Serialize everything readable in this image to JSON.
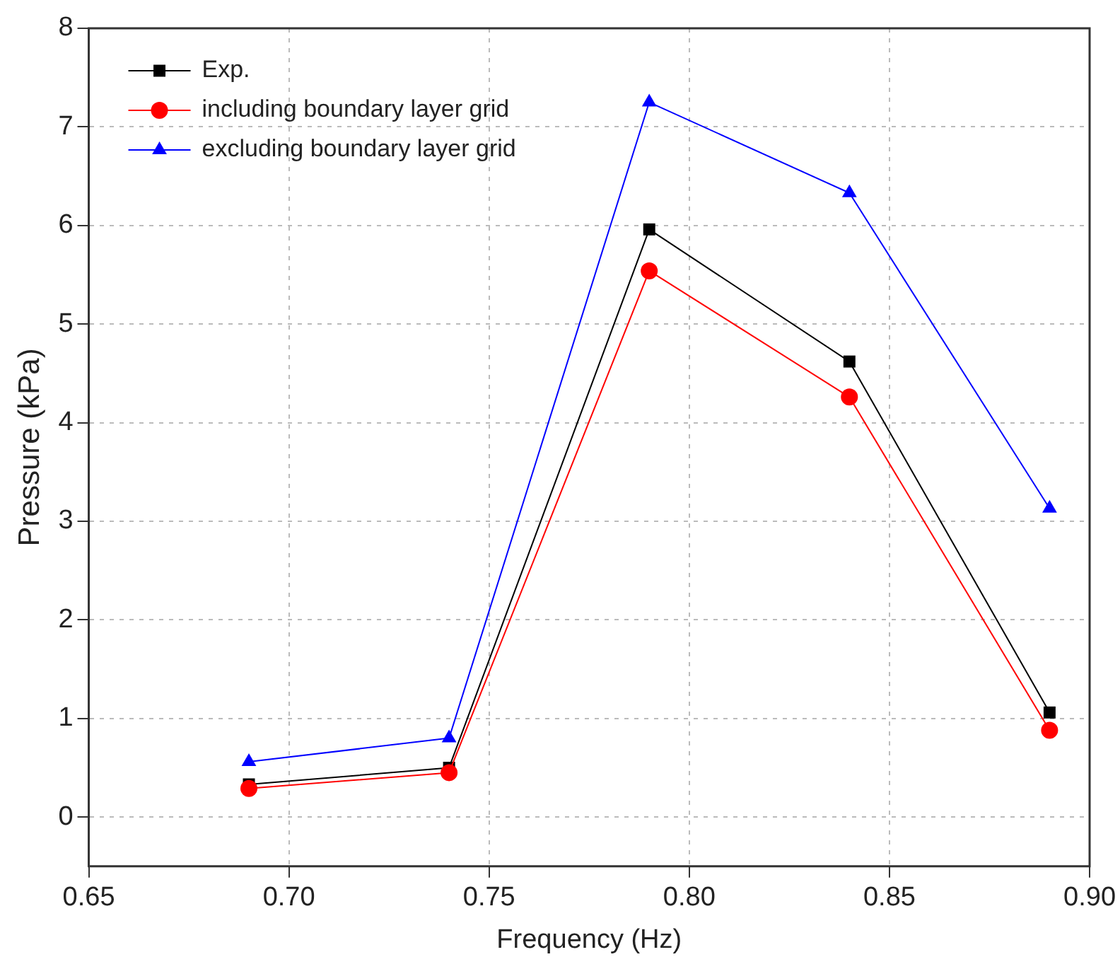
{
  "chart_data": {
    "type": "line",
    "xlabel": "Frequency (Hz)",
    "ylabel": "Pressure (kPa)",
    "x": [
      0.69,
      0.74,
      0.79,
      0.84,
      0.89
    ],
    "xlim": [
      0.65,
      0.9
    ],
    "xticks": [
      {
        "value": 0.65,
        "label": "0.65"
      },
      {
        "value": 0.7,
        "label": "0.70"
      },
      {
        "value": 0.75,
        "label": "0.75"
      },
      {
        "value": 0.8,
        "label": "0.80"
      },
      {
        "value": 0.85,
        "label": "0.85"
      },
      {
        "value": 0.9,
        "label": "0.90"
      }
    ],
    "ylim": [
      -0.5,
      8
    ],
    "yticks": [
      0,
      1,
      2,
      3,
      4,
      5,
      6,
      7,
      8
    ],
    "grid": true,
    "legend": "top left",
    "series": [
      {
        "name": "Exp.",
        "color": "#000000",
        "marker": "square",
        "values": [
          0.33,
          0.5,
          5.96,
          4.62,
          1.06
        ]
      },
      {
        "name": "including boundary layer grid",
        "color": "#ff0000",
        "marker": "circle",
        "values": [
          0.29,
          0.45,
          5.54,
          4.26,
          0.88
        ]
      },
      {
        "name": "excluding boundary layer grid",
        "color": "#0000ff",
        "marker": "triangle",
        "values": [
          0.56,
          0.8,
          7.25,
          6.33,
          3.13
        ]
      }
    ]
  }
}
